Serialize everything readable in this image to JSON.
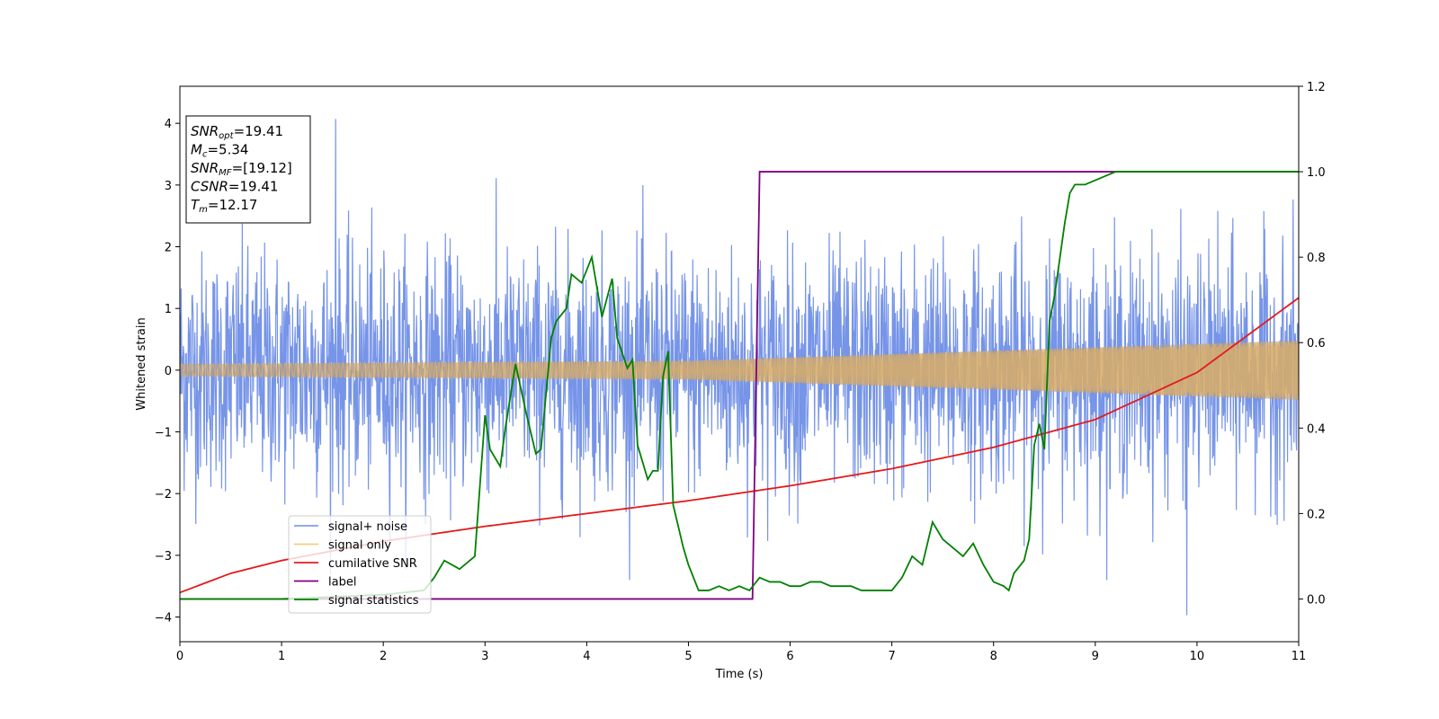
{
  "chart_data": {
    "type": "line",
    "xlabel": "Time (s)",
    "ylabel": "Whitened strain",
    "xlim": [
      0,
      11
    ],
    "ylim": [
      -4.4,
      4.6
    ],
    "y2lim": [
      -0.1,
      1.2
    ],
    "x_ticks": [
      "0",
      "1",
      "2",
      "3",
      "4",
      "5",
      "6",
      "7",
      "8",
      "9",
      "10",
      "11"
    ],
    "y_ticks": [
      "−4",
      "−3",
      "−2",
      "−1",
      "0",
      "1",
      "2",
      "3",
      "4"
    ],
    "y2_ticks": [
      "0.0",
      "0.2",
      "0.4",
      "0.6",
      "0.8",
      "1.0",
      "1.2"
    ],
    "grid": false,
    "legend_position": "lower-left",
    "series": [
      {
        "name": "signal+ noise",
        "axis": "left",
        "color": "#6a8be6",
        "description_values": {
          "typical_range": [
            -2.3,
            2.3
          ],
          "max": 4.07,
          "min": -3.97
        }
      },
      {
        "name": "signal only",
        "axis": "left",
        "color": "#f5c26b",
        "amplitude_envelope": {
          "x": [
            0,
            5,
            11
          ],
          "y": [
            0.1,
            0.15,
            0.48
          ]
        }
      },
      {
        "name": "cumilative SNR",
        "axis": "right",
        "color": "#e41a1c",
        "x": [
          0,
          0.5,
          1,
          2,
          3,
          4,
          5,
          6,
          7,
          8,
          9,
          10,
          11
        ],
        "y": [
          0.015,
          0.06,
          0.09,
          0.135,
          0.17,
          0.2,
          0.23,
          0.265,
          0.305,
          0.355,
          0.42,
          0.53,
          0.705
        ]
      },
      {
        "name": "label",
        "axis": "right",
        "color": "#800080",
        "x": [
          0,
          5.63,
          5.7,
          11
        ],
        "y": [
          0,
          0,
          1,
          1
        ]
      },
      {
        "name": "signal statistics",
        "axis": "right",
        "color": "#008000",
        "x": [
          0,
          1,
          2,
          2.4,
          2.5,
          2.6,
          2.75,
          2.9,
          3.0,
          3.05,
          3.15,
          3.2,
          3.3,
          3.4,
          3.5,
          3.55,
          3.65,
          3.7,
          3.8,
          3.85,
          3.95,
          4.05,
          4.15,
          4.25,
          4.3,
          4.4,
          4.45,
          4.5,
          4.6,
          4.65,
          4.7,
          4.75,
          4.8,
          4.85,
          4.95,
          5.0,
          5.1,
          5.2,
          5.3,
          5.4,
          5.5,
          5.6,
          5.7,
          5.8,
          5.9,
          6.0,
          6.1,
          6.2,
          6.3,
          6.4,
          6.5,
          6.6,
          6.7,
          6.8,
          6.9,
          7.0,
          7.1,
          7.2,
          7.3,
          7.4,
          7.5,
          7.6,
          7.7,
          7.8,
          7.9,
          8.0,
          8.1,
          8.15,
          8.2,
          8.3,
          8.35,
          8.4,
          8.45,
          8.5,
          8.55,
          8.6,
          8.7,
          8.75,
          8.8,
          8.9,
          9.0,
          9.1,
          9.2,
          9.4,
          9.6,
          9.8,
          10.0,
          10.5,
          11.0
        ],
        "y": [
          0.0,
          0.0,
          0.01,
          0.02,
          0.05,
          0.09,
          0.07,
          0.1,
          0.43,
          0.35,
          0.31,
          0.4,
          0.55,
          0.44,
          0.34,
          0.35,
          0.61,
          0.65,
          0.68,
          0.76,
          0.74,
          0.8,
          0.66,
          0.75,
          0.61,
          0.54,
          0.56,
          0.36,
          0.28,
          0.3,
          0.3,
          0.52,
          0.58,
          0.22,
          0.12,
          0.08,
          0.02,
          0.02,
          0.03,
          0.02,
          0.03,
          0.02,
          0.05,
          0.04,
          0.04,
          0.03,
          0.03,
          0.04,
          0.04,
          0.03,
          0.03,
          0.03,
          0.02,
          0.02,
          0.02,
          0.02,
          0.05,
          0.1,
          0.08,
          0.18,
          0.14,
          0.12,
          0.1,
          0.13,
          0.08,
          0.04,
          0.03,
          0.02,
          0.06,
          0.09,
          0.14,
          0.36,
          0.41,
          0.35,
          0.65,
          0.71,
          0.88,
          0.95,
          0.97,
          0.97,
          0.98,
          0.99,
          1.0,
          1.0,
          1.0,
          1.0,
          1.0,
          1.0,
          1.0
        ]
      }
    ],
    "annotations": {
      "info_box": [
        {
          "main": "SNR",
          "sub": "opt",
          "value": "=19.41"
        },
        {
          "main": "M",
          "sub": "c",
          "value": "=5.34"
        },
        {
          "main": "SNR",
          "sub": "MF",
          "value": "=[19.12]"
        },
        {
          "main": "CSNR",
          "sub": "",
          "value": "=19.41"
        },
        {
          "main": "T",
          "sub": "m",
          "value": "=12.17"
        }
      ]
    }
  }
}
